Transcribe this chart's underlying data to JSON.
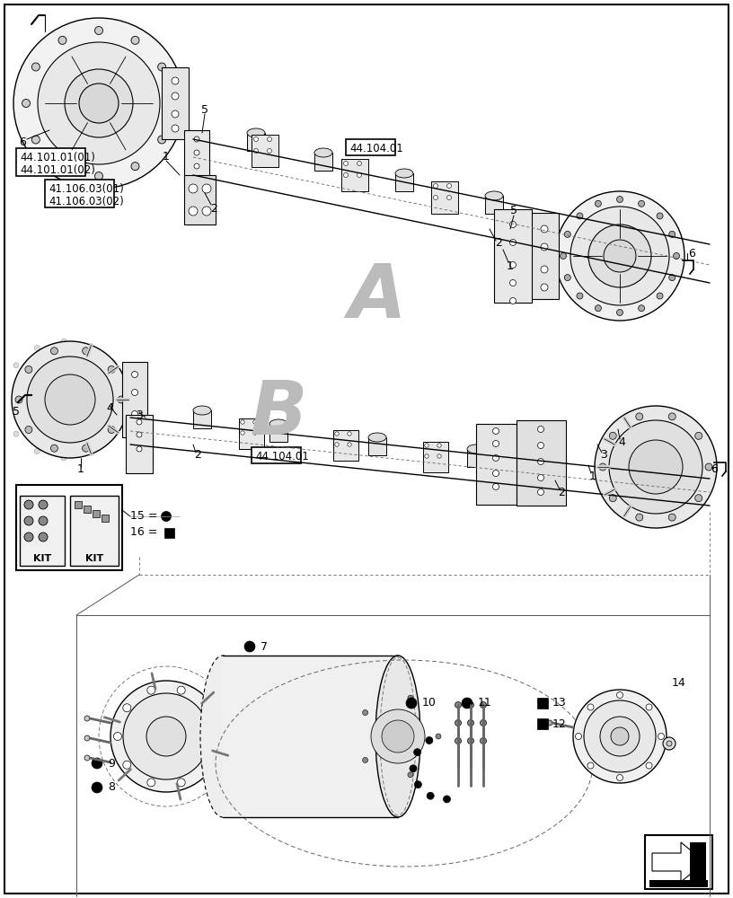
{
  "background_color": "#ffffff",
  "border_color": "#000000",
  "labels": {
    "ref_box1_line1": "44.101.01(01)",
    "ref_box1_line2": "44.101.01(02)",
    "ref_box2_line1": "41.106.03(01)",
    "ref_box2_line2": "41.106.03(02)",
    "ref_box3": "44.104.01",
    "ref_box4": "44.104.01",
    "label_A": "A",
    "label_B": "B"
  },
  "figsize": [
    8.16,
    10.0
  ],
  "dpi": 100
}
